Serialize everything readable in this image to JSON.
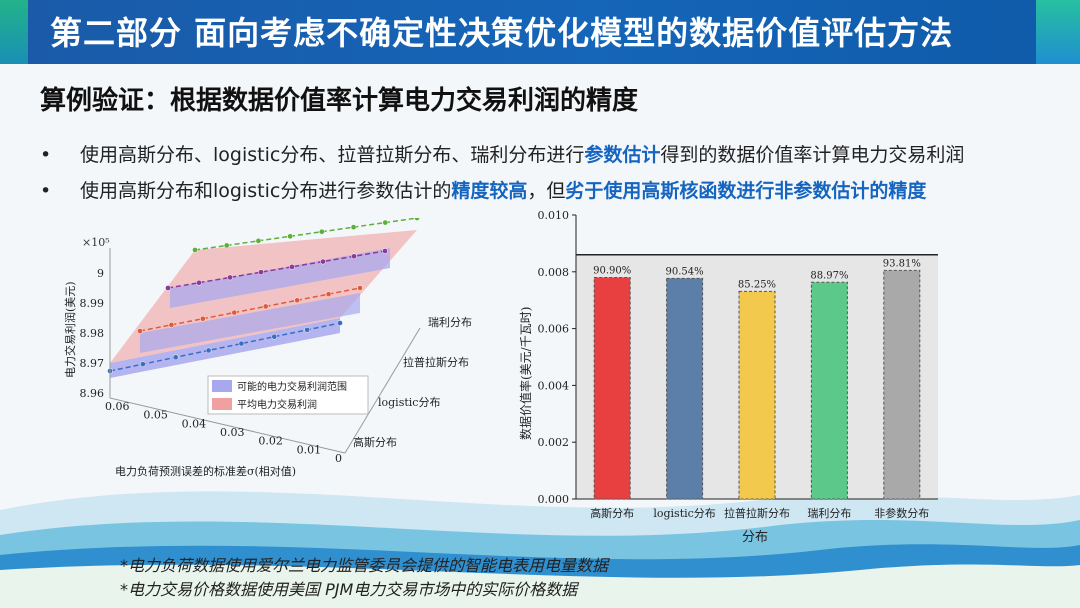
{
  "header": {
    "title": "第二部分  面向考虑不确定性决策优化模型的数据价值评估方法"
  },
  "subtitle": "算例验证：根据数据价值率计算电力交易利润的精度",
  "bullets": [
    {
      "pre": "使用高斯分布、logistic分布、拉普拉斯分布、瑞利分布进行",
      "hl": "参数估计",
      "post": "得到的数据价值率计算电力交易利润"
    },
    {
      "pre": "使用高斯分布和logistic分布进行参数估计的",
      "hl": "精度较高",
      "mid": "，但",
      "hl2": "劣于使用高斯核函数进行非参数估计的精度"
    }
  ],
  "footnotes": [
    "*电力负荷数据使用爱尔兰电力监管委员会提供的智能电表用电量数据",
    "*电力交易价格数据使用美国 PJM电力交易市场中的实际价格数据"
  ],
  "colors": {
    "header_bg": "#1565b8",
    "accent_text": "#1565c0"
  },
  "chart_data": [
    {
      "type": "line",
      "chart_kind": "3d-surface-lines",
      "zlabel": "电力交易利润(美元)",
      "zscale_label": "×10⁵",
      "zticks": [
        "9",
        "8.99",
        "8.98",
        "8.97",
        "8.96"
      ],
      "xlabel": "电力负荷预测误差的标准差σ(相对值)",
      "xticks": [
        "0.06",
        "0.05",
        "0.04",
        "0.03",
        "0.02",
        "0.01",
        "0"
      ],
      "ycategories": [
        "高斯分布",
        "logistic分布",
        "拉普拉斯分布",
        "瑞利分布"
      ],
      "legend": [
        {
          "label": "可能的电力交易利润范围",
          "color": "#a8a8ee"
        },
        {
          "label": "平均电力交易利润",
          "color": "#f0a0a0"
        }
      ],
      "series_colors": [
        "#3a6fc0",
        "#e25a3a",
        "#8a3a9a",
        "#5ab03a"
      ]
    },
    {
      "type": "bar",
      "categories": [
        "高斯分布",
        "logistic分布",
        "拉普拉斯分布",
        "瑞利分布",
        "非参数分布"
      ],
      "values": [
        0.0078,
        0.00777,
        0.00731,
        0.00763,
        0.00805
      ],
      "data_labels": [
        "90.90%",
        "90.54%",
        "85.25%",
        "88.97%",
        "93.81%"
      ],
      "colors": [
        "#e84040",
        "#5b7fa8",
        "#f2c94c",
        "#5cc98a",
        "#a9a9a9"
      ],
      "xlabel": "分布",
      "ylabel": "数据价值率(美元/千瓦时)",
      "ylim": [
        0,
        0.01
      ],
      "yticks": [
        "0.000",
        "0.002",
        "0.004",
        "0.006",
        "0.008",
        "0.010"
      ],
      "ref_line": 0.0086
    }
  ]
}
